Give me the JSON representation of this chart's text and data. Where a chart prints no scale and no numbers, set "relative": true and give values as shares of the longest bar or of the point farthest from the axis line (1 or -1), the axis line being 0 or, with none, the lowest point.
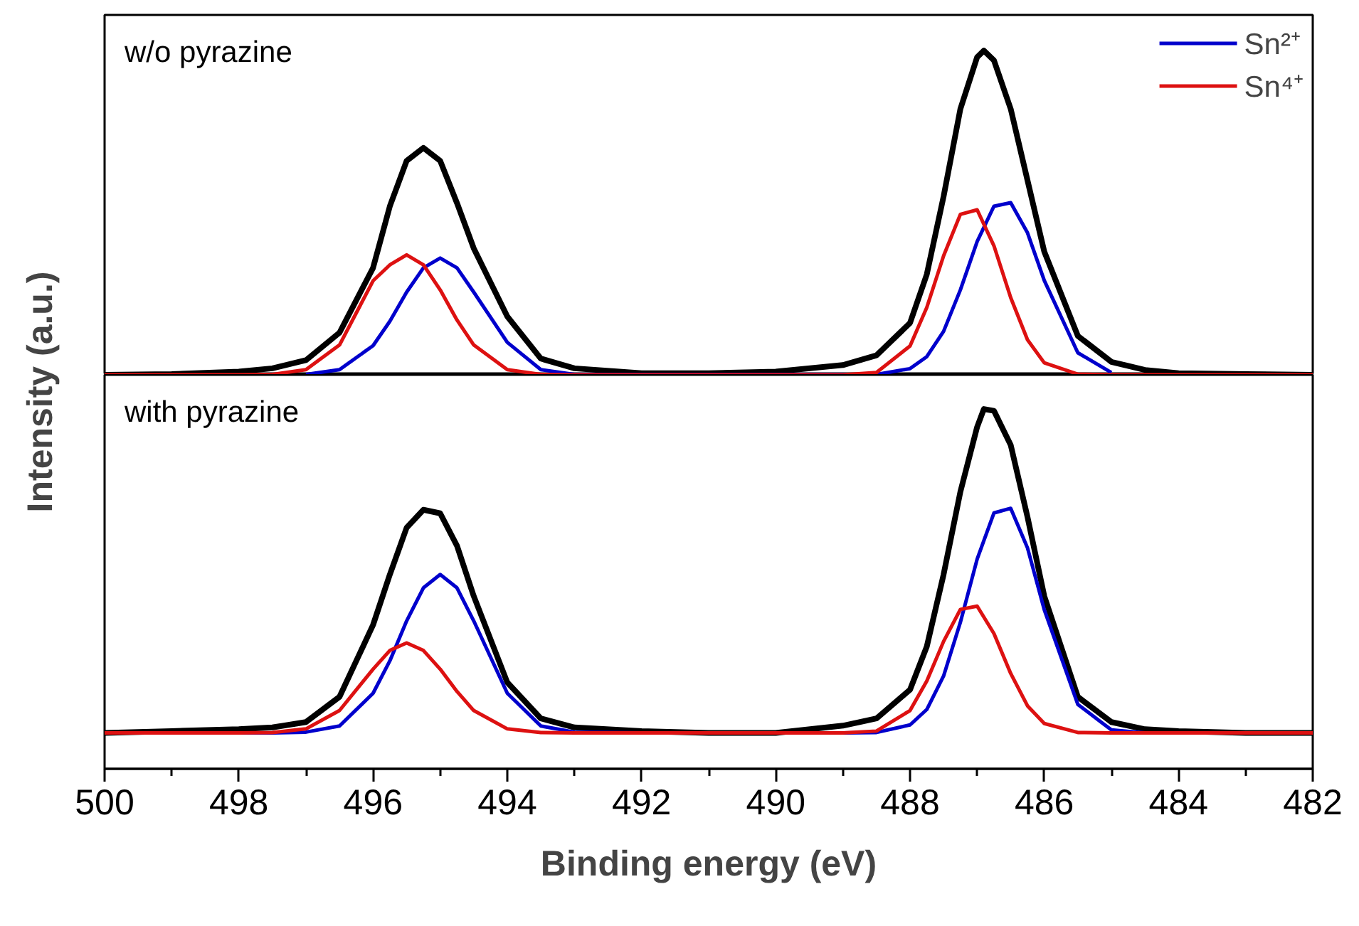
{
  "chart_data": [
    {
      "type": "line",
      "relative": true,
      "annotations": [
        "w/o pyrazine"
      ],
      "ylabel": "Intensity (a.u.)",
      "legend": "top right",
      "tick_labels": false,
      "xlim": [
        500,
        482
      ],
      "series": [
        {
          "color": "#000000",
          "x": [
            500,
            499,
            498,
            497.5,
            497,
            496.5,
            496,
            495.75,
            495.5,
            495.25,
            495,
            494.75,
            494.5,
            494,
            493.5,
            493,
            492,
            491,
            490,
            489,
            488.5,
            488,
            487.75,
            487.5,
            487.25,
            487,
            486.9,
            486.75,
            486.5,
            486.25,
            486,
            485.5,
            485,
            484.5,
            484,
            483,
            482
          ],
          "values": [
            0,
            0.002,
            0.01,
            0.02,
            0.045,
            0.13,
            0.33,
            0.52,
            0.66,
            0.7,
            0.66,
            0.53,
            0.39,
            0.18,
            0.05,
            0.02,
            0.005,
            0.005,
            0.01,
            0.03,
            0.06,
            0.16,
            0.31,
            0.55,
            0.82,
            0.98,
            1.0,
            0.97,
            0.82,
            0.6,
            0.38,
            0.12,
            0.04,
            0.015,
            0.005,
            0.002,
            0
          ]
        },
        {
          "name": "Sn²⁺",
          "color": "#0000cc",
          "x": [
            497,
            496.5,
            496,
            495.75,
            495.5,
            495.25,
            495,
            494.75,
            494.5,
            494,
            493.5,
            493,
            488.5,
            488,
            487.75,
            487.5,
            487.25,
            487,
            486.75,
            486.5,
            486.25,
            486,
            485.5,
            485
          ],
          "values": [
            0.001,
            0.016,
            0.09,
            0.165,
            0.255,
            0.33,
            0.36,
            0.33,
            0.255,
            0.1,
            0.016,
            0.001,
            0.001,
            0.019,
            0.056,
            0.134,
            0.262,
            0.411,
            0.52,
            0.531,
            0.438,
            0.291,
            0.068,
            0.007
          ]
        },
        {
          "name": "Sn⁴⁺",
          "color": "#dd1111",
          "x": [
            500,
            498,
            497.5,
            497,
            496.5,
            496,
            495.75,
            495.5,
            495.25,
            495,
            494.75,
            494.5,
            494,
            493.5,
            493,
            492,
            489,
            488.5,
            488,
            487.75,
            487.5,
            487.25,
            487,
            486.75,
            486.5,
            486.25,
            486,
            485.5,
            485,
            482
          ],
          "values": [
            0,
            0,
            0.001,
            0.016,
            0.092,
            0.29,
            0.339,
            0.37,
            0.339,
            0.262,
            0.169,
            0.092,
            0.016,
            0.001,
            0,
            0,
            0,
            0.007,
            0.089,
            0.208,
            0.367,
            0.495,
            0.509,
            0.398,
            0.238,
            0.108,
            0.037,
            0.002,
            0,
            0
          ]
        }
      ]
    },
    {
      "type": "line",
      "relative": true,
      "annotations": [
        "with pyrazine"
      ],
      "xlabel": "Binding energy (eV)",
      "tick_labels": "x",
      "xlim": [
        500,
        482
      ],
      "xticks": [
        500,
        {
          "value": 499,
          "label": null
        },
        498,
        {
          "value": 497,
          "label": null
        },
        496,
        {
          "value": 495,
          "label": null
        },
        494,
        {
          "value": 493,
          "label": null
        },
        492,
        {
          "value": 491,
          "label": null
        },
        490,
        {
          "value": 489,
          "label": null
        },
        488,
        {
          "value": 487,
          "label": null
        },
        486,
        {
          "value": 485,
          "label": null
        },
        484,
        {
          "value": 483,
          "label": null
        },
        482
      ],
      "series": [
        {
          "color": "#000000",
          "x": [
            500,
            499,
            498,
            497.5,
            497,
            496.5,
            496,
            495.75,
            495.5,
            495.25,
            495,
            494.75,
            494.5,
            494,
            493.5,
            493,
            492,
            491,
            490,
            489,
            488.5,
            488,
            487.75,
            487.5,
            487.25,
            487,
            486.9,
            486.75,
            486.5,
            486.25,
            486,
            485.5,
            485,
            484.5,
            484,
            483,
            482
          ],
          "values": [
            0.1,
            0.105,
            0.11,
            0.115,
            0.13,
            0.2,
            0.4,
            0.54,
            0.67,
            0.72,
            0.71,
            0.62,
            0.48,
            0.24,
            0.14,
            0.115,
            0.105,
            0.1,
            0.1,
            0.12,
            0.14,
            0.22,
            0.34,
            0.54,
            0.77,
            0.95,
            1.0,
            0.995,
            0.9,
            0.7,
            0.48,
            0.2,
            0.13,
            0.11,
            0.105,
            0.1,
            0.1
          ]
        },
        {
          "color": "#0000cc",
          "x": [
            500,
            497.5,
            497,
            496.5,
            496,
            495.75,
            495.5,
            495.25,
            495,
            494.75,
            494.5,
            494,
            493.5,
            493,
            492,
            489,
            488.5,
            488,
            487.75,
            487.5,
            487.25,
            487,
            486.75,
            486.5,
            486.25,
            486,
            485.5,
            485,
            484.5,
            482
          ],
          "values": [
            0.1,
            0.1,
            0.102,
            0.119,
            0.21,
            0.3,
            0.411,
            0.503,
            0.54,
            0.503,
            0.411,
            0.21,
            0.119,
            0.102,
            0.1,
            0.1,
            0.101,
            0.122,
            0.165,
            0.258,
            0.407,
            0.583,
            0.711,
            0.724,
            0.614,
            0.442,
            0.179,
            0.108,
            0.1,
            0.1
          ]
        },
        {
          "color": "#dd1111",
          "x": [
            500,
            498,
            497.5,
            497,
            496.5,
            496,
            495.75,
            495.5,
            495.25,
            495,
            494.75,
            494.5,
            494,
            493.5,
            493,
            492,
            489,
            488.5,
            488,
            487.75,
            487.5,
            487.25,
            487,
            486.75,
            486.5,
            486.25,
            486,
            485.5,
            485,
            482
          ],
          "values": [
            0.1,
            0.1,
            0.101,
            0.111,
            0.162,
            0.277,
            0.329,
            0.35,
            0.329,
            0.277,
            0.215,
            0.162,
            0.111,
            0.101,
            0.1,
            0.1,
            0.1,
            0.105,
            0.162,
            0.244,
            0.354,
            0.443,
            0.452,
            0.376,
            0.265,
            0.175,
            0.126,
            0.101,
            0.1,
            0.1
          ]
        }
      ]
    }
  ]
}
